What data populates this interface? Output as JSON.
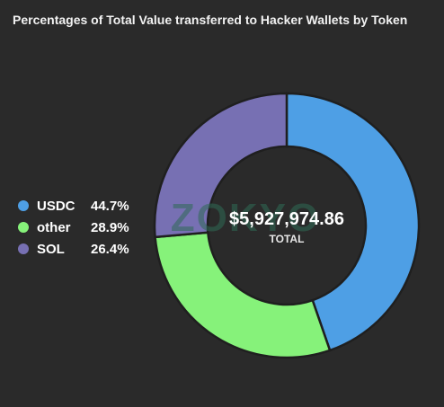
{
  "chart_data": {
    "type": "pie",
    "title": "Percentages of Total Value transferred to Hacker Wallets by Token",
    "legend_position": "left",
    "categories": [
      "USDC",
      "other",
      "SOL"
    ],
    "values": [
      44.7,
      28.9,
      26.4
    ],
    "value_labels": [
      "44.7%",
      "28.9%",
      "26.4%"
    ],
    "colors": [
      "#4e9fe5",
      "#86f27a",
      "#7770b3"
    ],
    "center_total": "$5,927,974.86",
    "center_label": "TOTAL",
    "watermark": "ZOKYO"
  }
}
